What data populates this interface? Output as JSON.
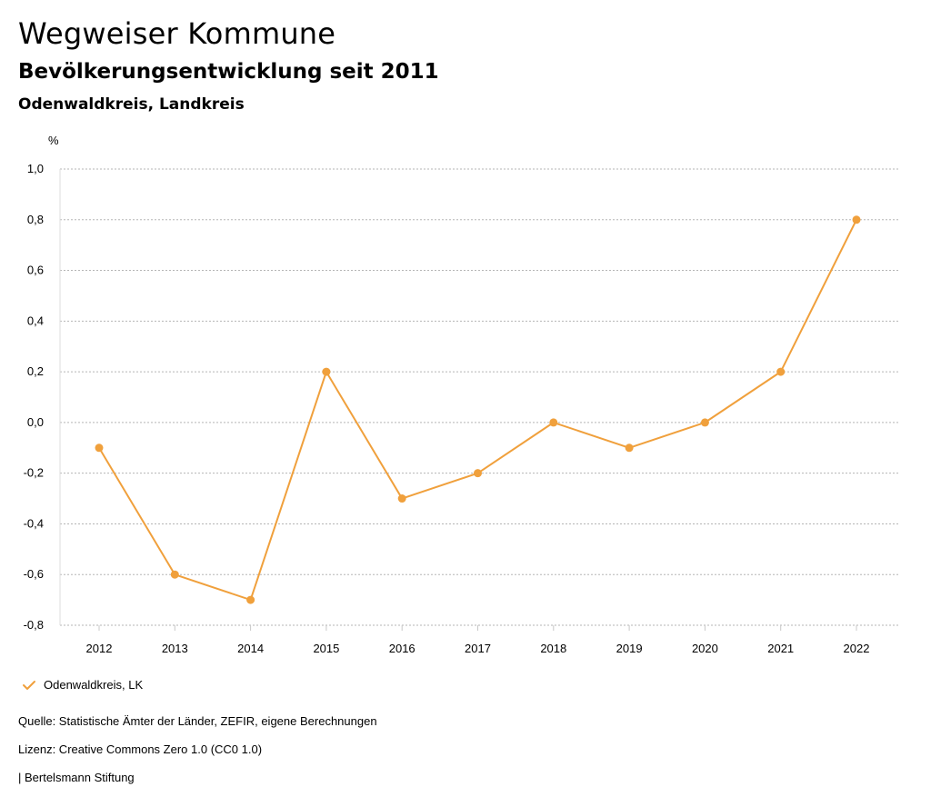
{
  "header": {
    "title": "Wegweiser Kommune",
    "subtitle": "Bevölkerungsentwicklung seit 2011",
    "region": "Odenwaldkreis, Landkreis"
  },
  "chart_data": {
    "type": "line",
    "ylabel": "%",
    "ylim": [
      -0.8,
      1.0
    ],
    "y_ticks": [
      "1,0",
      "0,8",
      "0,6",
      "0,4",
      "0,2",
      "0,0",
      "-0,2",
      "-0,4",
      "-0,6",
      "-0,8"
    ],
    "y_tick_values": [
      1.0,
      0.8,
      0.6,
      0.4,
      0.2,
      0.0,
      -0.2,
      -0.4,
      -0.6,
      -0.8
    ],
    "categories": [
      "2012",
      "2013",
      "2014",
      "2015",
      "2016",
      "2017",
      "2018",
      "2019",
      "2020",
      "2021",
      "2022"
    ],
    "series": [
      {
        "name": "Odenwaldkreis, LK",
        "values": [
          -0.1,
          -0.6,
          -0.7,
          0.2,
          -0.3,
          -0.2,
          0.0,
          -0.1,
          0.0,
          0.2,
          0.8
        ],
        "color": "#f0a03c"
      }
    ],
    "grid": true,
    "legend_position": "bottom-left"
  },
  "legend": {
    "label": "Odenwaldkreis, LK",
    "icon": "check-icon",
    "color": "#f0a03c"
  },
  "footer": {
    "source": "Quelle: Statistische Ämter der Länder, ZEFIR, eigene Berechnungen",
    "license": "Lizenz: Creative Commons Zero 1.0 (CC0 1.0)",
    "brand": "| Bertelsmann Stiftung"
  }
}
